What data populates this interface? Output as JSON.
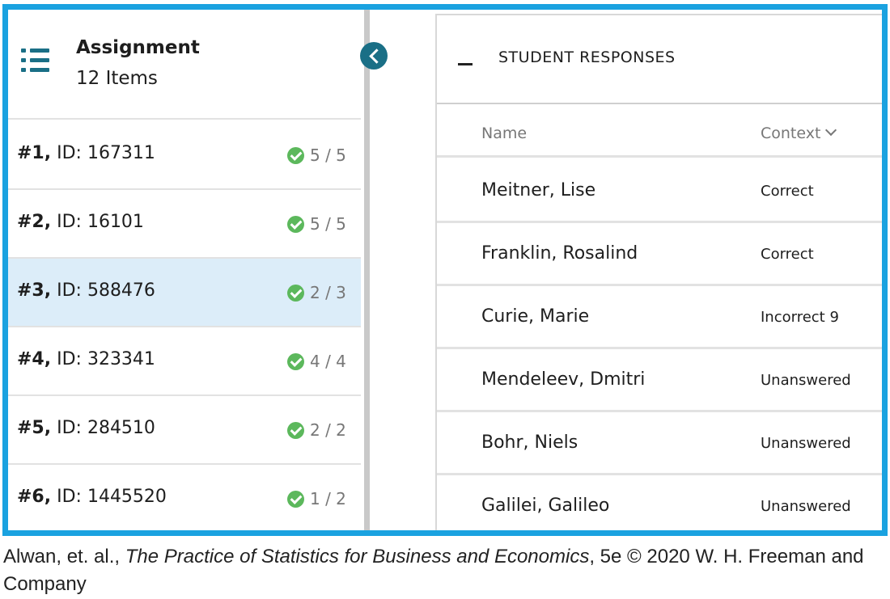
{
  "sidebar": {
    "icon": "list-icon",
    "title": "Assignment",
    "subtitle": "12 Items",
    "items": [
      {
        "num": "#1,",
        "id": "ID: 167311",
        "score": "5 / 5"
      },
      {
        "num": "#2,",
        "id": "ID: 16101",
        "score": "5 / 5"
      },
      {
        "num": "#3,",
        "id": "ID: 588476",
        "score": "2 / 3"
      },
      {
        "num": "#4,",
        "id": "ID: 323341",
        "score": "4 / 4"
      },
      {
        "num": "#5,",
        "id": "ID: 284510",
        "score": "2 / 2"
      },
      {
        "num": "#6,",
        "id": "ID: 1445520",
        "score": "1 / 2"
      }
    ],
    "selected_index": 2
  },
  "responses": {
    "title": "STUDENT RESPONSES",
    "columns": {
      "name": "Name",
      "context": "Context"
    },
    "rows": [
      {
        "name": "Meitner, Lise",
        "context": "Correct"
      },
      {
        "name": "Franklin, Rosalind",
        "context": "Correct"
      },
      {
        "name": "Curie, Marie",
        "context": "Incorrect 9"
      },
      {
        "name": "Mendeleev, Dmitri",
        "context": "Unanswered"
      },
      {
        "name": "Bohr, Niels",
        "context": "Unanswered"
      },
      {
        "name": "Galilei, Galileo",
        "context": "Unanswered"
      }
    ]
  },
  "caption": {
    "prefix": "Alwan, et. al., ",
    "book": "The Practice of Statistics for Business and Economics",
    "suffix": ", 5e © 2020 W. H. Freeman and Company"
  },
  "colors": {
    "frame": "#1aa2e0",
    "accent": "#1a6f86",
    "selected_bg": "#dcedf9",
    "check": "#5cb85c"
  }
}
